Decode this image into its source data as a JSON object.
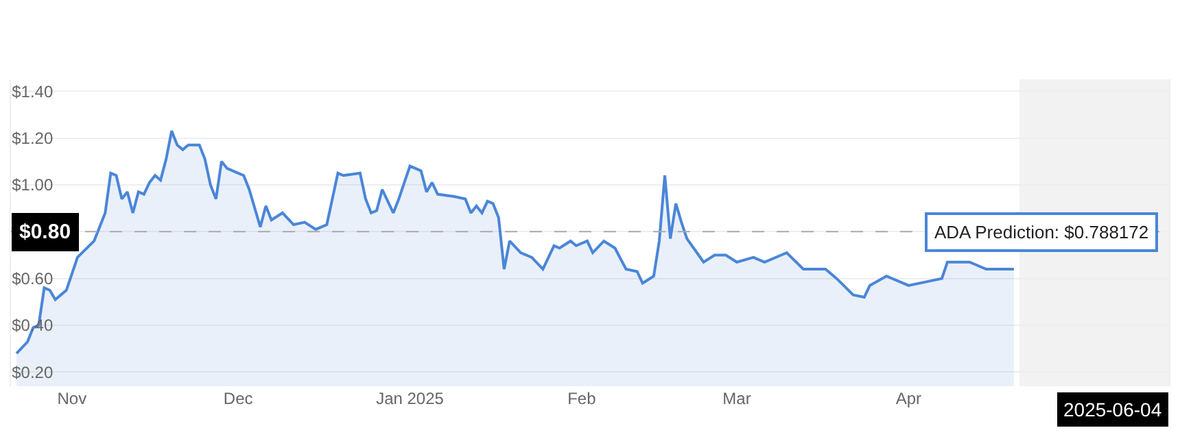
{
  "chart_data": {
    "type": "area",
    "x": [
      "2024-10-22",
      "2024-10-24",
      "2024-10-25",
      "2024-10-26",
      "2024-10-27",
      "2024-10-28",
      "2024-10-29",
      "2024-10-30",
      "2024-10-31",
      "2024-11-02",
      "2024-11-05",
      "2024-11-07",
      "2024-11-08",
      "2024-11-09",
      "2024-11-10",
      "2024-11-11",
      "2024-11-12",
      "2024-11-13",
      "2024-11-14",
      "2024-11-15",
      "2024-11-16",
      "2024-11-17",
      "2024-11-18",
      "2024-11-19",
      "2024-11-20",
      "2024-11-21",
      "2024-11-22",
      "2024-11-23",
      "2024-11-24",
      "2024-11-25",
      "2024-11-26",
      "2024-11-27",
      "2024-11-28",
      "2024-11-29",
      "2024-12-01",
      "2024-12-02",
      "2024-12-03",
      "2024-12-05",
      "2024-12-06",
      "2024-12-07",
      "2024-12-09",
      "2024-12-11",
      "2024-12-13",
      "2024-12-15",
      "2024-12-17",
      "2024-12-19",
      "2024-12-20",
      "2024-12-23",
      "2024-12-24",
      "2024-12-25",
      "2024-12-26",
      "2024-12-27",
      "2024-12-29",
      "2024-12-30",
      "2024-12-31",
      "2025-01-01",
      "2025-01-02",
      "2025-01-03",
      "2025-01-04",
      "2025-01-05",
      "2025-01-06",
      "2025-01-09",
      "2025-01-11",
      "2025-01-12",
      "2025-01-13",
      "2025-01-14",
      "2025-01-15",
      "2025-01-16",
      "2025-01-17",
      "2025-01-18",
      "2025-01-19",
      "2025-01-21",
      "2025-01-23",
      "2025-01-25",
      "2025-01-27",
      "2025-01-28",
      "2025-01-30",
      "2025-01-31",
      "2025-02-02",
      "2025-02-03",
      "2025-02-05",
      "2025-02-07",
      "2025-02-09",
      "2025-02-11",
      "2025-02-12",
      "2025-02-14",
      "2025-02-15",
      "2025-02-16",
      "2025-02-17",
      "2025-02-18",
      "2025-02-19",
      "2025-02-20",
      "2025-02-23",
      "2025-02-25",
      "2025-02-27",
      "2025-03-01",
      "2025-03-04",
      "2025-03-06",
      "2025-03-09",
      "2025-03-10",
      "2025-03-13",
      "2025-03-17",
      "2025-03-19",
      "2025-03-22",
      "2025-03-24",
      "2025-03-25",
      "2025-03-28",
      "2025-04-01",
      "2025-04-05",
      "2025-04-07",
      "2025-04-08",
      "2025-04-12",
      "2025-04-15",
      "2025-04-20"
    ],
    "series": [
      {
        "color": "#4a86d8",
        "values": [
          0.28,
          0.33,
          0.39,
          0.4,
          0.56,
          0.55,
          0.51,
          0.53,
          0.55,
          0.69,
          0.76,
          0.88,
          1.05,
          1.04,
          0.94,
          0.97,
          0.88,
          0.97,
          0.96,
          1.01,
          1.04,
          1.02,
          1.11,
          1.23,
          1.17,
          1.15,
          1.17,
          1.17,
          1.17,
          1.11,
          1.0,
          0.94,
          1.1,
          1.07,
          1.05,
          1.04,
          0.98,
          0.82,
          0.91,
          0.85,
          0.88,
          0.83,
          0.84,
          0.81,
          0.83,
          1.05,
          1.04,
          1.05,
          0.94,
          0.88,
          0.89,
          0.98,
          0.88,
          0.94,
          1.01,
          1.08,
          1.07,
          1.06,
          0.97,
          1.01,
          0.96,
          0.95,
          0.94,
          0.88,
          0.91,
          0.88,
          0.93,
          0.92,
          0.86,
          0.64,
          0.76,
          0.71,
          0.69,
          0.64,
          0.74,
          0.73,
          0.76,
          0.74,
          0.76,
          0.71,
          0.76,
          0.73,
          0.64,
          0.63,
          0.58,
          0.61,
          0.76,
          1.04,
          0.77,
          0.92,
          0.84,
          0.77,
          0.67,
          0.7,
          0.7,
          0.67,
          0.69,
          0.67,
          0.7,
          0.71,
          0.64,
          0.64,
          0.6,
          0.53,
          0.52,
          0.57,
          0.61,
          0.57,
          0.59,
          0.6,
          0.67,
          0.67,
          0.64,
          0.64
        ]
      }
    ],
    "xlim": [
      "2024-10-21",
      "2025-05-18"
    ],
    "xticks": [
      {
        "value": "2024-11-01",
        "label": "Nov"
      },
      {
        "value": "2024-12-01",
        "label": "Dec"
      },
      {
        "value": "2025-01-01",
        "label": "Jan 2025"
      },
      {
        "value": "2025-02-01",
        "label": "Feb"
      },
      {
        "value": "2025-03-01",
        "label": "Mar"
      },
      {
        "value": "2025-04-01",
        "label": "Apr"
      }
    ],
    "ylim": [
      0.14,
      1.45
    ],
    "yticks": [
      {
        "value": 0.2,
        "label": "$0.20"
      },
      {
        "value": 0.4,
        "label": "$0.40"
      },
      {
        "value": 0.6,
        "label": "$0.60"
      },
      {
        "value": 0.8,
        "label": null
      },
      {
        "value": 1.0,
        "label": "$1.00"
      },
      {
        "value": 1.2,
        "label": "$1.20"
      },
      {
        "value": 1.4,
        "label": "$1.40"
      }
    ],
    "grid": "y",
    "ref_lines": [
      {
        "axis": "y",
        "value": 0.8,
        "label": "$0.80",
        "color": "#aaaaaa",
        "line_style": "dashed"
      }
    ],
    "bands": [
      {
        "axis": "x",
        "from": "2025-04-21",
        "to": "2025-05-18",
        "color": "#f2f2f2"
      }
    ],
    "annotations": [
      "ADA Prediction: $0.788172",
      "2025-06-04"
    ]
  }
}
